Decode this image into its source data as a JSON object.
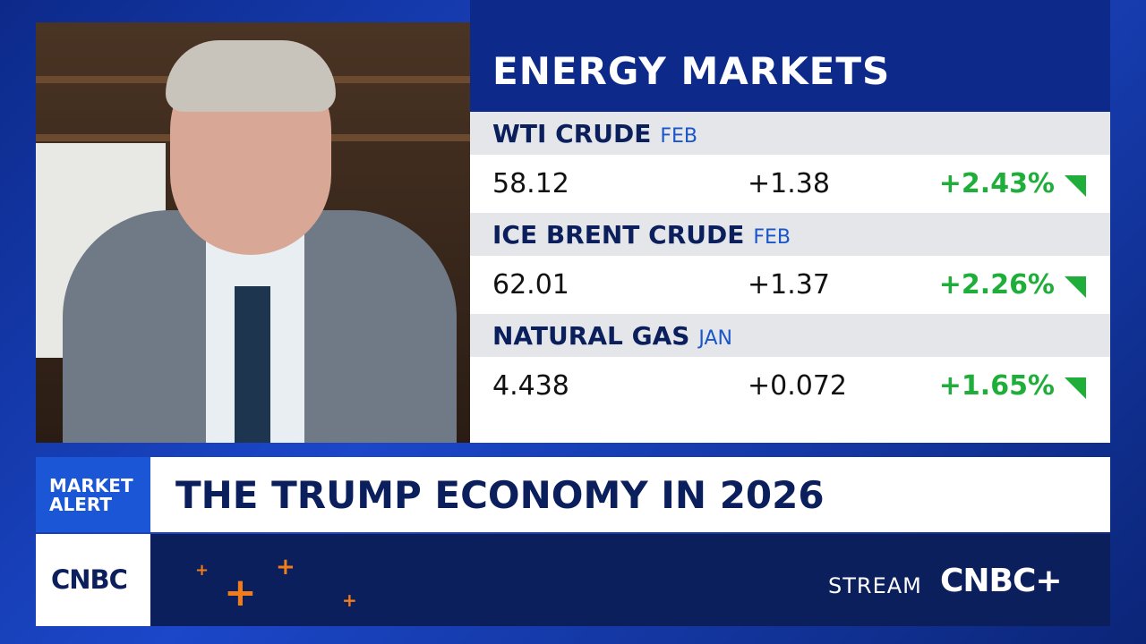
{
  "panel": {
    "title": "ENERGY MARKETS",
    "rows": [
      {
        "name": "WTI CRUDE",
        "contract": "FEB",
        "last": "58.12",
        "change": "+1.38",
        "pct": "+2.43%"
      },
      {
        "name": "ICE BRENT CRUDE",
        "contract": "FEB",
        "last": "62.01",
        "change": "+1.37",
        "pct": "+2.26%"
      },
      {
        "name": "NATURAL GAS",
        "contract": "JAN",
        "last": "4.438",
        "change": "+0.072",
        "pct": "+1.65%"
      }
    ]
  },
  "banner": {
    "tag_lines": [
      "MARKET",
      "ALERT"
    ],
    "headline": "THE TRUMP ECONOMY IN 2026"
  },
  "footer": {
    "logo": "CNBC",
    "stream": "STREAM",
    "stream_logo": "CNBC+"
  }
}
